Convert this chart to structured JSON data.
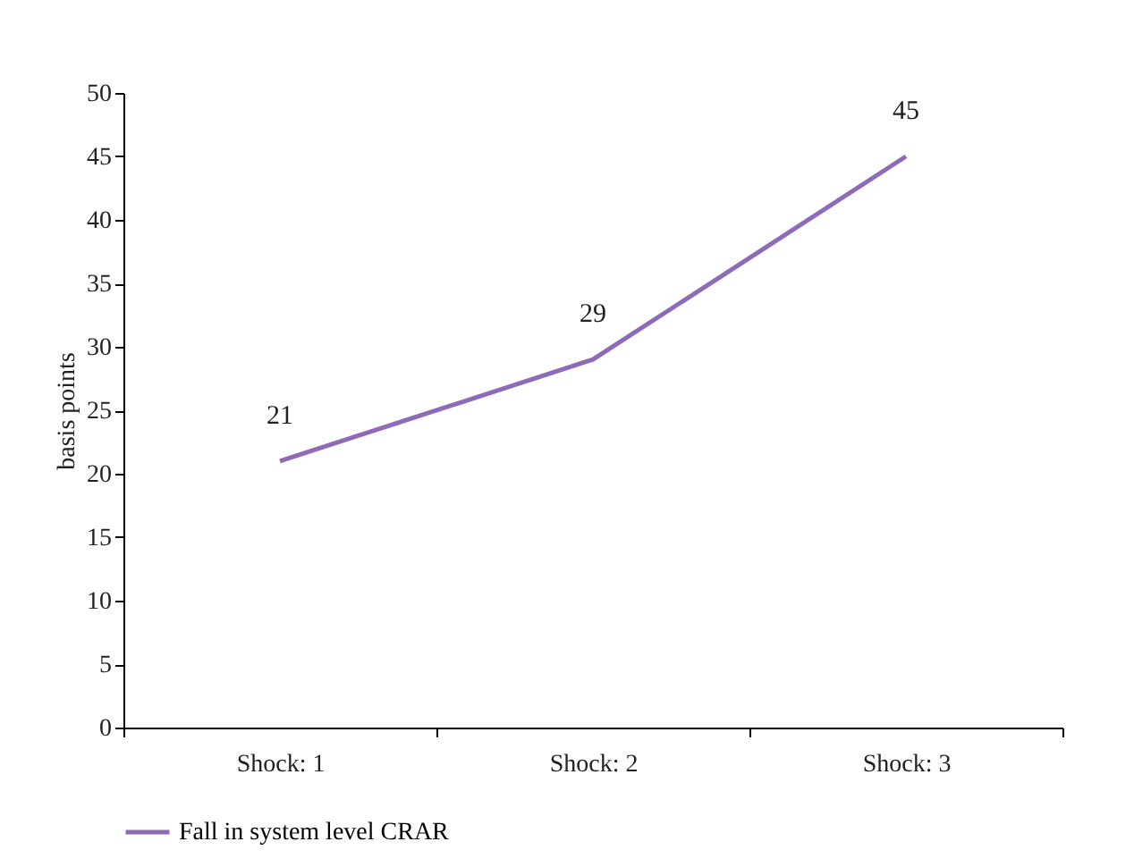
{
  "chart_data": {
    "type": "line",
    "ylabel": "basis points",
    "categories": [
      "Shock: 1",
      "Shock: 2",
      "Shock: 3"
    ],
    "series": [
      {
        "name": "Fall in system level CRAR",
        "color": "#8e6bb9",
        "values": [
          21,
          29,
          45
        ]
      }
    ],
    "ylim": [
      0,
      50
    ],
    "yticks": [
      0,
      5,
      10,
      15,
      20,
      25,
      30,
      35,
      40,
      45,
      50
    ],
    "grid": false,
    "legend": "bottom",
    "data_labels": true,
    "marker": "none"
  }
}
